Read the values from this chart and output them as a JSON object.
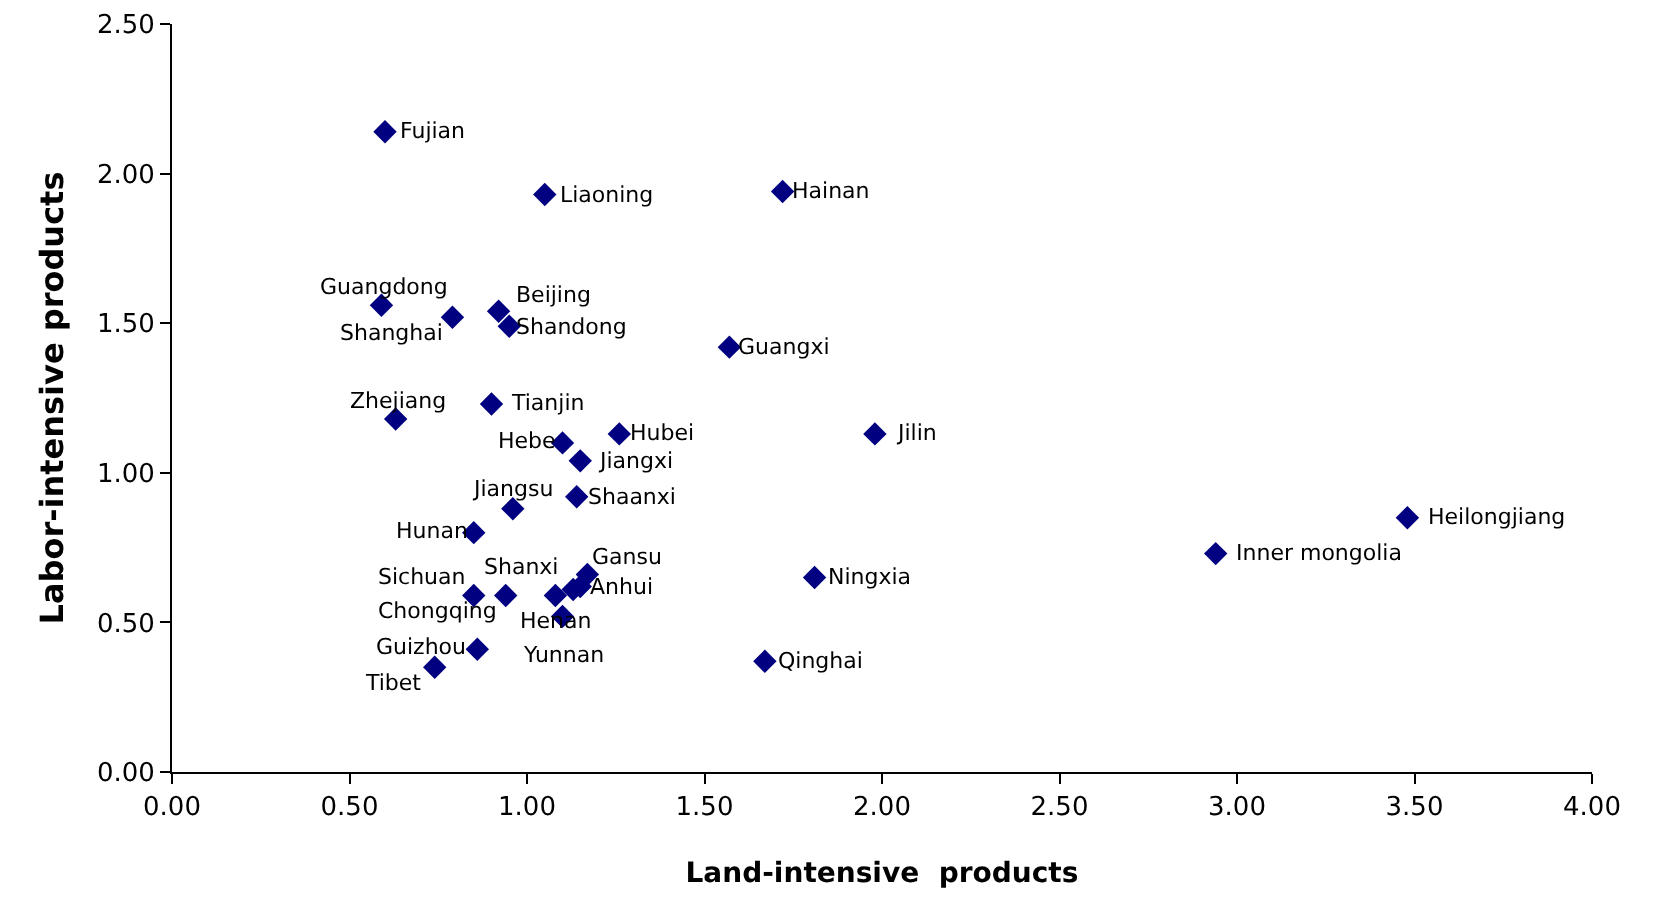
{
  "chart_data": {
    "type": "scatter",
    "xlabel": "Land-intensive  products",
    "ylabel": "Labor-intensive products",
    "x": [
      0.6,
      1.05,
      1.72,
      0.59,
      0.79,
      0.92,
      0.95,
      1.57,
      0.9,
      0.63,
      1.1,
      1.26,
      1.15,
      1.98,
      0.96,
      1.14,
      0.85,
      0.85,
      1.08,
      1.13,
      0.94,
      1.15,
      1.17,
      1.1,
      1.81,
      1.67,
      0.74,
      0.86,
      2.94,
      3.48
    ],
    "values": [
      2.14,
      1.93,
      1.94,
      1.56,
      1.52,
      1.54,
      1.49,
      1.42,
      1.23,
      1.18,
      1.1,
      1.13,
      1.04,
      1.13,
      0.88,
      0.92,
      0.8,
      0.59,
      0.59,
      0.61,
      0.59,
      0.62,
      0.66,
      0.52,
      0.65,
      0.37,
      0.35,
      0.41,
      0.73,
      0.85
    ],
    "value_labels": [
      "Fujian",
      "Liaoning",
      "Hainan",
      "Guangdong",
      "Shanghai",
      "Beijing",
      "Shandong",
      "Guangxi",
      "Tianjin",
      "Zhejiang",
      "Hebe",
      "Hubei",
      "Jiangxi",
      "Jilin",
      "Jiangsu",
      "Shaanxi",
      "Hunan",
      "Sichuan",
      "Henan",
      "Shanxi",
      "Chongqing",
      "Anhui",
      "Gansu",
      "Yunnan",
      "Ningxia",
      "Qinghai",
      "Tibet",
      "Guizhou",
      "Inner mongolia",
      "Heilongjiang"
    ],
    "color": "#000080",
    "marker": "diamond",
    "xlim": [
      0,
      4
    ],
    "xticks": [
      {
        "value": 0,
        "label": "0.00"
      },
      {
        "value": 0.5,
        "label": "0.50"
      },
      {
        "value": 1,
        "label": "1.00"
      },
      {
        "value": 1.5,
        "label": "1.50"
      },
      {
        "value": 2,
        "label": "2.00"
      },
      {
        "value": 2.5,
        "label": "2.50"
      },
      {
        "value": 3,
        "label": "3.00"
      },
      {
        "value": 3.5,
        "label": "3.50"
      },
      {
        "value": 4,
        "label": "4.00"
      }
    ],
    "ylim": [
      0,
      2.5
    ],
    "yticks": [
      {
        "value": 0,
        "label": "0.00"
      },
      {
        "value": 0.5,
        "label": "0.50"
      },
      {
        "value": 1,
        "label": "1.00"
      },
      {
        "value": 1.5,
        "label": "1.50"
      },
      {
        "value": 2,
        "label": "2.00"
      },
      {
        "value": 2.5,
        "label": "2.50"
      }
    ]
  }
}
